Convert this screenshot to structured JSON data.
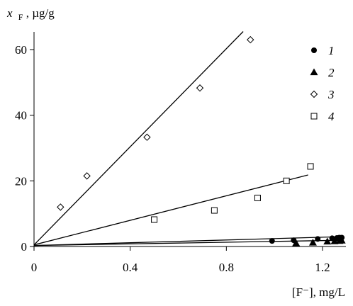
{
  "chart_data": {
    "type": "scatter",
    "ylabel_var": "x",
    "ylabel_sub": "F",
    "ylabel_unit": ", µg/g",
    "xlabel": "[F⁻], mg/L",
    "xlim": [
      0,
      1.3
    ],
    "ylim": [
      0,
      68
    ],
    "x_ticks": [
      0,
      0.4,
      0.8,
      1.2
    ],
    "x_tick_labels": [
      "0",
      "0.4",
      "0.8",
      "1.2"
    ],
    "y_ticks": [
      0,
      20,
      40,
      60
    ],
    "y_tick_labels": [
      "0",
      "20",
      "40",
      "60"
    ],
    "grid": false,
    "legend_position": "top-right",
    "series": [
      {
        "name": "1",
        "marker": "filled-circle",
        "points": [
          [
            0.99,
            1.7
          ],
          [
            1.08,
            1.9
          ],
          [
            1.18,
            2.3
          ],
          [
            1.24,
            2.5
          ],
          [
            1.26,
            2.6
          ],
          [
            1.27,
            2.7
          ],
          [
            1.28,
            2.7
          ]
        ],
        "fit": [
          [
            0,
            0.3
          ],
          [
            1.28,
            3.0
          ]
        ]
      },
      {
        "name": "2",
        "marker": "filled-triangle",
        "points": [
          [
            1.09,
            1.0
          ],
          [
            1.16,
            1.2
          ],
          [
            1.22,
            1.5
          ],
          [
            1.25,
            1.6
          ],
          [
            1.27,
            1.7
          ],
          [
            1.28,
            1.8
          ]
        ],
        "fit": [
          [
            0,
            0.3
          ],
          [
            1.28,
            1.9
          ]
        ]
      },
      {
        "name": "3",
        "marker": "open-diamond",
        "points": [
          [
            0.11,
            12.0
          ],
          [
            0.22,
            21.5
          ],
          [
            0.47,
            33.3
          ],
          [
            0.69,
            48.3
          ],
          [
            0.9,
            63.0
          ]
        ],
        "fit": [
          [
            0,
            0.5
          ],
          [
            0.87,
            65.5
          ]
        ]
      },
      {
        "name": "4",
        "marker": "open-square",
        "points": [
          [
            0.5,
            8.2
          ],
          [
            0.75,
            11.0
          ],
          [
            0.93,
            14.8
          ],
          [
            1.05,
            20.0
          ],
          [
            1.15,
            24.4
          ]
        ],
        "fit": [
          [
            0,
            0.5
          ],
          [
            1.14,
            21.8
          ]
        ]
      }
    ]
  }
}
